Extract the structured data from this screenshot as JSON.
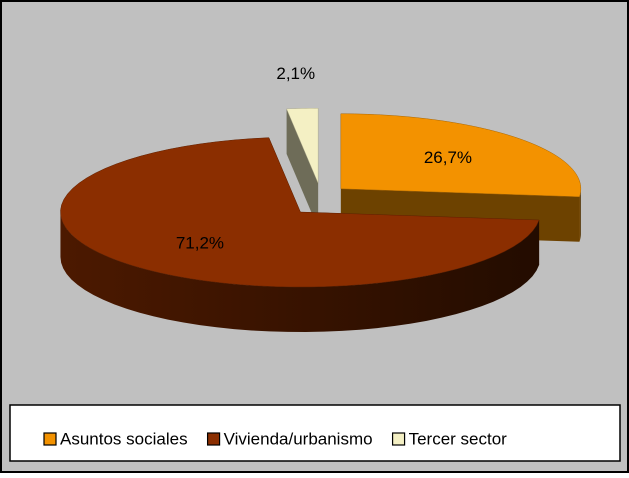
{
  "chart_data": {
    "type": "pie",
    "categories": [
      "Asuntos sociales",
      "Vivienda/urbanismo",
      "Tercer sector"
    ],
    "values": [
      26.7,
      71.2,
      2.1
    ],
    "value_labels": [
      "26,7%",
      "71,2%",
      "2,1%"
    ],
    "colors": [
      "#f39200",
      "#8b2e00",
      "#f4f0c4"
    ],
    "legend": "bottom"
  }
}
